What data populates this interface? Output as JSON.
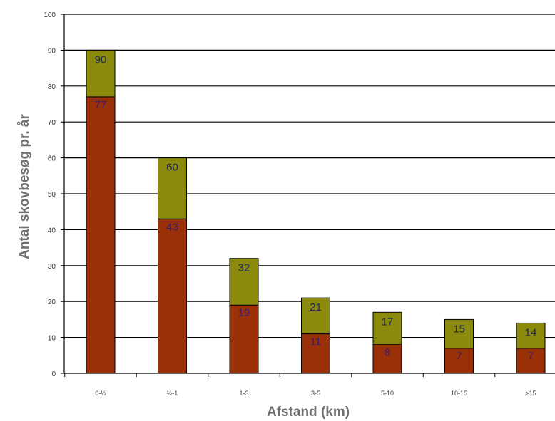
{
  "chart_data": {
    "type": "bar",
    "stacked": true,
    "categories": [
      "0-½",
      "½-1",
      "1-3",
      "3-5",
      "5-10",
      "10-15",
      ">15"
    ],
    "series": [
      {
        "values": [
          77,
          43,
          19,
          11,
          8,
          7,
          7
        ],
        "color": "#9a3008",
        "label_color": "#3a1a6a"
      },
      {
        "values": [
          13,
          17,
          13,
          10,
          9,
          8,
          7
        ],
        "color": "#8c8a0c",
        "label_color": "#1f2a55"
      }
    ],
    "totals": [
      90,
      60,
      32,
      21,
      17,
      15,
      14
    ],
    "data_labels": {
      "lower": [
        "77",
        "43",
        "19",
        "11",
        "8",
        "7",
        "7"
      ],
      "total": [
        "90",
        "60",
        "32",
        "21",
        "17",
        "15",
        "14"
      ]
    },
    "xlabel": "Afstand (km)",
    "ylabel": "Antal skovbesøg pr. år",
    "ylim": [
      0,
      100
    ],
    "yticks": [
      0,
      10,
      20,
      30,
      40,
      50,
      60,
      70,
      80,
      90,
      100
    ],
    "grid": true
  }
}
